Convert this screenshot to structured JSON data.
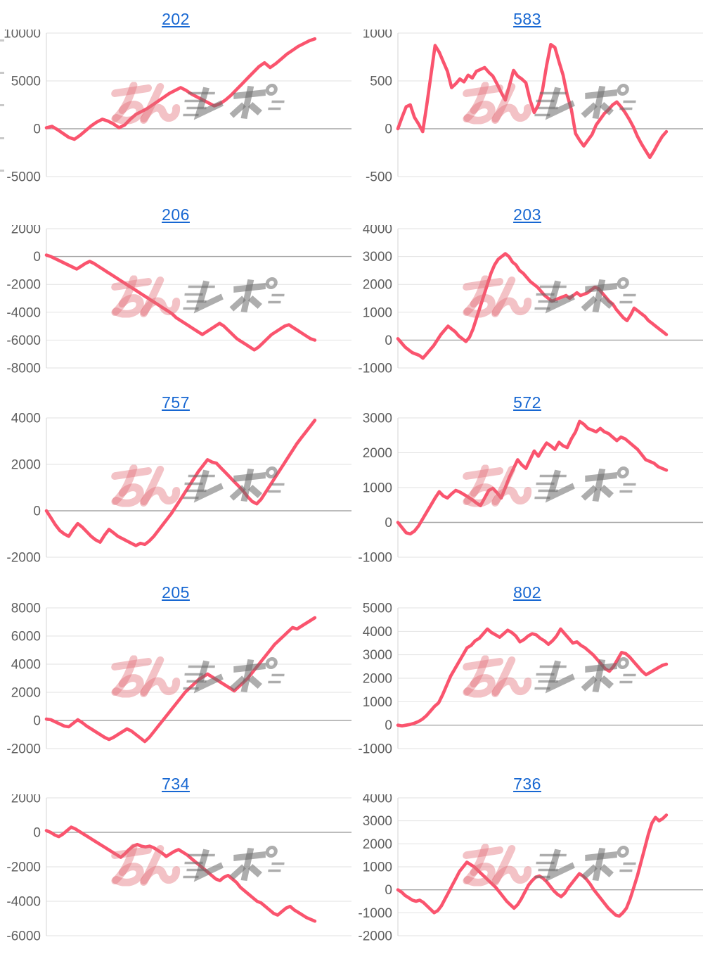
{
  "page": {
    "background": "#ffffff",
    "description": "grid of slot machine payout line graphs",
    "columns": 2,
    "rows": 5
  },
  "style": {
    "line_color": "#fa546e",
    "grid_color": "#e2e2e2",
    "zero_line_color": "#a6a6a6",
    "axis_line_color": "#d4d4d4",
    "label_color": "#5f5f5f",
    "title_color": "#1767d2",
    "watermark_pink": "rgba(226,110,120,0.42)",
    "watermark_gray": "rgba(105,105,105,0.55)"
  },
  "watermark": {
    "pink_text": "みん",
    "gray_text": "レポ"
  },
  "chart_data": [
    {
      "id": "202",
      "title": "202",
      "type": "line",
      "xlabel": "",
      "ylabel": "",
      "grid": true,
      "legend": "none",
      "ylim": [
        -5000,
        10000
      ],
      "yticks": [
        10000,
        5000,
        0,
        -5000
      ],
      "values": [
        100,
        250,
        -100,
        -500,
        -900,
        -1100,
        -700,
        -200,
        300,
        700,
        1000,
        800,
        500,
        100,
        400,
        1000,
        1500,
        1800,
        2100,
        2500,
        2900,
        3300,
        3700,
        4000,
        4300,
        4000,
        3600,
        3300,
        3000,
        2700,
        2400,
        2600,
        3000,
        3500,
        4100,
        4700,
        5300,
        5900,
        6500,
        6900,
        6400,
        6800,
        7300,
        7800,
        8200,
        8600,
        8900,
        9200,
        9400
      ]
    },
    {
      "id": "583",
      "title": "583",
      "type": "line",
      "xlabel": "",
      "ylabel": "",
      "grid": true,
      "legend": "none",
      "ylim": [
        -500,
        1000
      ],
      "yticks": [
        1000,
        500,
        0,
        -500
      ],
      "values": [
        0,
        120,
        230,
        250,
        120,
        50,
        -30,
        250,
        560,
        870,
        800,
        700,
        600,
        430,
        470,
        520,
        490,
        560,
        530,
        600,
        620,
        640,
        590,
        550,
        470,
        380,
        300,
        450,
        610,
        550,
        520,
        480,
        300,
        170,
        250,
        400,
        660,
        880,
        850,
        700,
        560,
        350,
        200,
        -50,
        -120,
        -180,
        -120,
        -60,
        40,
        100,
        160,
        200,
        250,
        280,
        230,
        170,
        100,
        20,
        -80,
        -160,
        -230,
        -300,
        -230,
        -150,
        -80,
        -30
      ]
    },
    {
      "id": "206",
      "title": "206",
      "type": "line",
      "xlabel": "",
      "ylabel": "",
      "grid": true,
      "legend": "none",
      "ylim": [
        -8000,
        2000
      ],
      "yticks": [
        2000,
        0,
        -2000,
        -4000,
        -6000,
        -8000
      ],
      "values": [
        100,
        0,
        -150,
        -300,
        -450,
        -600,
        -750,
        -900,
        -700,
        -500,
        -350,
        -500,
        -700,
        -900,
        -1100,
        -1300,
        -1500,
        -1700,
        -1900,
        -2100,
        -2300,
        -2500,
        -2700,
        -2900,
        -3100,
        -3300,
        -3500,
        -3700,
        -3900,
        -4100,
        -4400,
        -4600,
        -4800,
        -5000,
        -5200,
        -5400,
        -5600,
        -5400,
        -5200,
        -5000,
        -4800,
        -5000,
        -5300,
        -5600,
        -5900,
        -6100,
        -6300,
        -6500,
        -6700,
        -6500,
        -6200,
        -5900,
        -5600,
        -5400,
        -5200,
        -5000,
        -4900,
        -5100,
        -5300,
        -5500,
        -5700,
        -5900,
        -6000
      ]
    },
    {
      "id": "203",
      "title": "203",
      "type": "line",
      "xlabel": "",
      "ylabel": "",
      "grid": true,
      "legend": "none",
      "ylim": [
        -1000,
        4000
      ],
      "yticks": [
        4000,
        3000,
        2000,
        1000,
        0,
        -1000
      ],
      "values": [
        50,
        -100,
        -250,
        -350,
        -450,
        -500,
        -550,
        -650,
        -500,
        -350,
        -200,
        0,
        200,
        350,
        500,
        400,
        300,
        150,
        50,
        -50,
        100,
        400,
        800,
        1200,
        1600,
        2000,
        2400,
        2700,
        2900,
        3000,
        3100,
        3000,
        2800,
        2700,
        2500,
        2400,
        2250,
        2100,
        2000,
        1900,
        1750,
        1600,
        1500,
        1400,
        1450,
        1500,
        1550,
        1600,
        1500,
        1600,
        1700,
        1600,
        1650,
        1700,
        1800,
        1900,
        1850,
        1700,
        1550,
        1400,
        1300,
        1100,
        950,
        800,
        700,
        900,
        1150,
        1050,
        950,
        850,
        700,
        600,
        500,
        400,
        300,
        200
      ]
    },
    {
      "id": "757",
      "title": "757",
      "type": "line",
      "xlabel": "",
      "ylabel": "",
      "grid": true,
      "legend": "none",
      "ylim": [
        -2000,
        4000
      ],
      "yticks": [
        4000,
        2000,
        0,
        -2000
      ],
      "values": [
        0,
        -300,
        -600,
        -850,
        -1000,
        -1100,
        -800,
        -550,
        -700,
        -900,
        -1100,
        -1250,
        -1350,
        -1050,
        -800,
        -950,
        -1100,
        -1200,
        -1300,
        -1400,
        -1500,
        -1400,
        -1450,
        -1300,
        -1100,
        -850,
        -600,
        -350,
        -100,
        200,
        500,
        800,
        1100,
        1400,
        1700,
        1950,
        2200,
        2100,
        2050,
        1850,
        1650,
        1450,
        1250,
        1050,
        850,
        600,
        400,
        300,
        500,
        800,
        1100,
        1400,
        1700,
        2000,
        2300,
        2600,
        2900,
        3150,
        3400,
        3650,
        3900
      ]
    },
    {
      "id": "572",
      "title": "572",
      "type": "line",
      "xlabel": "",
      "ylabel": "",
      "grid": true,
      "legend": "none",
      "ylim": [
        -1000,
        3000
      ],
      "yticks": [
        3000,
        2000,
        1000,
        0,
        -1000
      ],
      "values": [
        0,
        -150,
        -300,
        -330,
        -250,
        -100,
        100,
        300,
        500,
        700,
        880,
        760,
        700,
        820,
        920,
        870,
        800,
        730,
        650,
        560,
        480,
        700,
        920,
        980,
        850,
        700,
        1000,
        1300,
        1550,
        1800,
        1650,
        1550,
        1800,
        2050,
        1900,
        2100,
        2280,
        2200,
        2100,
        2300,
        2200,
        2150,
        2400,
        2600,
        2900,
        2820,
        2700,
        2650,
        2600,
        2700,
        2600,
        2550,
        2450,
        2350,
        2450,
        2400,
        2300,
        2200,
        2100,
        1950,
        1800,
        1750,
        1700,
        1600,
        1550,
        1500
      ]
    },
    {
      "id": "205",
      "title": "205",
      "type": "line",
      "xlabel": "",
      "ylabel": "",
      "grid": true,
      "legend": "none",
      "ylim": [
        -2000,
        8000
      ],
      "yticks": [
        8000,
        6000,
        4000,
        2000,
        0,
        -2000
      ],
      "values": [
        100,
        50,
        -100,
        -250,
        -400,
        -450,
        -200,
        50,
        -150,
        -400,
        -600,
        -800,
        -1000,
        -1200,
        -1350,
        -1200,
        -1000,
        -800,
        -600,
        -750,
        -1000,
        -1250,
        -1500,
        -1200,
        -800,
        -400,
        0,
        400,
        800,
        1200,
        1600,
        2000,
        2300,
        2600,
        2900,
        3100,
        3300,
        3100,
        2900,
        2700,
        2500,
        2300,
        2100,
        2400,
        2700,
        3000,
        3400,
        3800,
        4200,
        4600,
        5000,
        5400,
        5700,
        6000,
        6300,
        6600,
        6500,
        6700,
        6900,
        7100,
        7300
      ]
    },
    {
      "id": "802",
      "title": "802",
      "type": "line",
      "xlabel": "",
      "ylabel": "",
      "grid": true,
      "legend": "none",
      "ylim": [
        -1000,
        5000
      ],
      "yticks": [
        5000,
        4000,
        3000,
        2000,
        1000,
        0,
        -1000
      ],
      "values": [
        0,
        -30,
        0,
        30,
        80,
        150,
        250,
        400,
        600,
        800,
        950,
        1300,
        1700,
        2100,
        2400,
        2700,
        3000,
        3300,
        3400,
        3600,
        3700,
        3900,
        4100,
        3950,
        3850,
        3750,
        3900,
        4050,
        3950,
        3800,
        3550,
        3650,
        3800,
        3900,
        3850,
        3700,
        3600,
        3450,
        3600,
        3800,
        4100,
        3900,
        3700,
        3500,
        3550,
        3400,
        3300,
        3150,
        3000,
        2800,
        2600,
        2400,
        2300,
        2500,
        2800,
        3100,
        3050,
        2900,
        2700,
        2500,
        2300,
        2150,
        2250,
        2350,
        2450,
        2550,
        2600
      ]
    },
    {
      "id": "734",
      "title": "734",
      "type": "line",
      "xlabel": "",
      "ylabel": "",
      "grid": true,
      "legend": "none",
      "ylim": [
        -6000,
        2000
      ],
      "yticks": [
        2000,
        0,
        -2000,
        -4000,
        -6000
      ],
      "values": [
        100,
        0,
        -150,
        -250,
        -100,
        100,
        300,
        200,
        50,
        -100,
        -250,
        -400,
        -550,
        -700,
        -850,
        -1000,
        -1150,
        -1300,
        -1450,
        -1250,
        -1000,
        -800,
        -700,
        -800,
        -850,
        -800,
        -900,
        -1050,
        -1200,
        -1400,
        -1250,
        -1100,
        -1000,
        -1150,
        -1300,
        -1500,
        -1700,
        -1900,
        -2100,
        -2300,
        -2500,
        -2700,
        -2800,
        -2600,
        -2500,
        -2700,
        -2900,
        -3200,
        -3400,
        -3600,
        -3800,
        -4000,
        -4100,
        -4300,
        -4500,
        -4700,
        -4800,
        -4600,
        -4400,
        -4300,
        -4500,
        -4650,
        -4800,
        -4950,
        -5050,
        -5150
      ]
    },
    {
      "id": "736",
      "title": "736",
      "type": "line",
      "xlabel": "",
      "ylabel": "",
      "grid": true,
      "legend": "none",
      "ylim": [
        -2000,
        4000
      ],
      "yticks": [
        4000,
        3000,
        2000,
        1000,
        0,
        -1000,
        -2000
      ],
      "values": [
        0,
        -100,
        -250,
        -350,
        -450,
        -500,
        -450,
        -550,
        -700,
        -850,
        -1000,
        -900,
        -700,
        -400,
        -100,
        200,
        500,
        800,
        1000,
        1200,
        1100,
        1000,
        850,
        700,
        550,
        400,
        250,
        100,
        -100,
        -300,
        -500,
        -650,
        -800,
        -650,
        -400,
        -100,
        200,
        400,
        550,
        600,
        500,
        350,
        150,
        -50,
        -200,
        -300,
        -150,
        100,
        300,
        500,
        700,
        600,
        450,
        250,
        0,
        -200,
        -400,
        -600,
        -800,
        -950,
        -1100,
        -1150,
        -1000,
        -800,
        -400,
        100,
        600,
        1200,
        1800,
        2400,
        2900,
        3150,
        3000,
        3100,
        3250
      ]
    }
  ]
}
